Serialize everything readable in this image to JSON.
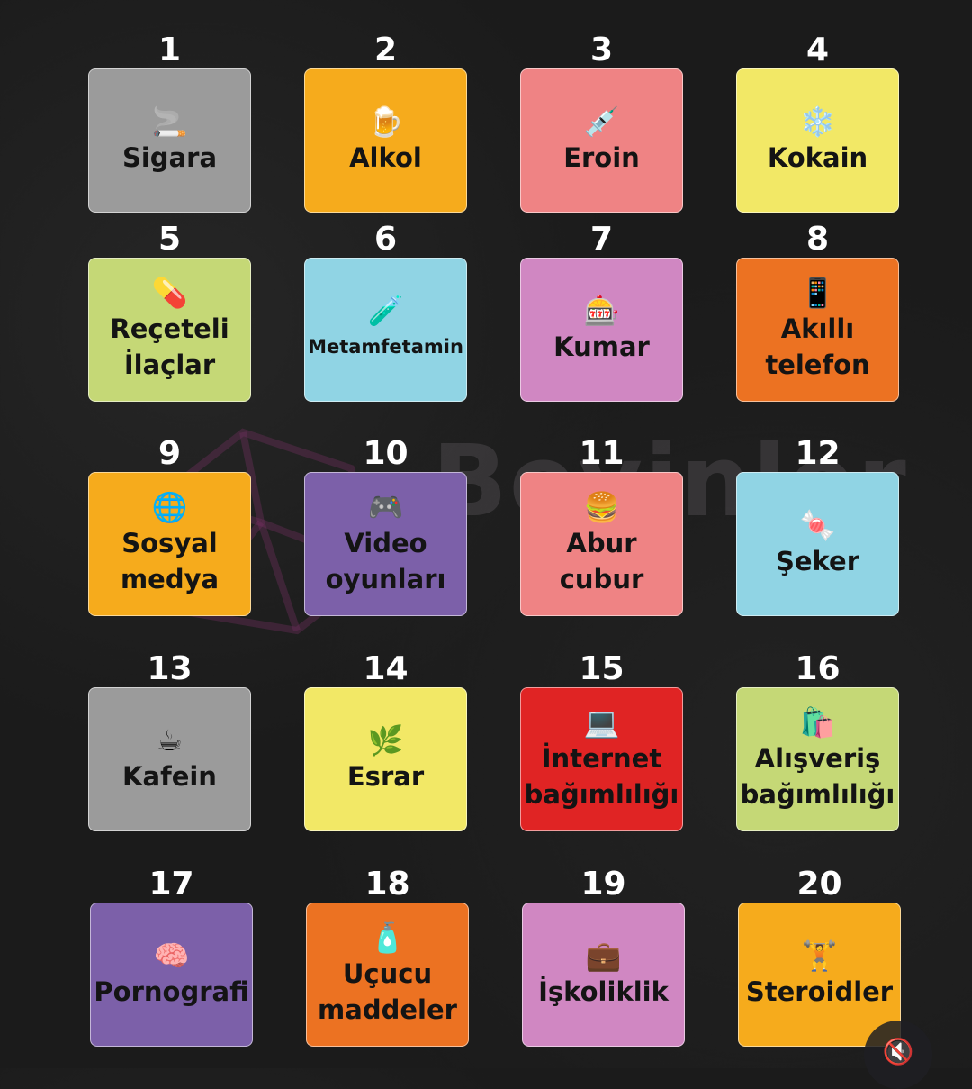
{
  "watermark": {
    "text": "Beyinler A"
  },
  "colors": {
    "gray": "#9b9b9b",
    "orange": "#f6ab1c",
    "pink": "#ef8384",
    "yellow": "#f2e866",
    "green": "#c5d876",
    "lightblue": "#90d4e4",
    "mauve": "#d087c2",
    "deeporange": "#ec7222",
    "purple": "#7c60a9",
    "red": "#e02424"
  },
  "tiles": [
    {
      "number": "1",
      "label": "Sigara",
      "icon": "🚬",
      "icon_name": "cigarette-icon",
      "color": "#9b9b9b"
    },
    {
      "number": "2",
      "label": "Alkol",
      "icon": "🍺",
      "icon_name": "beer-icon",
      "color": "#f6ab1c"
    },
    {
      "number": "3",
      "label": "Eroin",
      "icon": "💉",
      "icon_name": "syringe-icon",
      "color": "#ef8384"
    },
    {
      "number": "4",
      "label": "Kokain",
      "icon": "❄️",
      "icon_name": "snowflake-icon",
      "color": "#f2e866"
    },
    {
      "number": "5",
      "label": "Reçeteli\nİlaçlar",
      "icon": "💊",
      "icon_name": "pill-icon",
      "color": "#c5d876"
    },
    {
      "number": "6",
      "label": "Metamfetamin",
      "icon": "🧪",
      "icon_name": "test-tube-icon",
      "color": "#90d4e4"
    },
    {
      "number": "7",
      "label": "Kumar",
      "icon": "🎰",
      "icon_name": "slot-machine-icon",
      "color": "#d087c2"
    },
    {
      "number": "8",
      "label": "Akıllı\ntelefon",
      "icon": "📱",
      "icon_name": "smartphone-icon",
      "color": "#ec7222"
    },
    {
      "number": "9",
      "label": "Sosyal\nmedya",
      "icon": "🌐",
      "icon_name": "globe-icon",
      "color": "#f6ab1c"
    },
    {
      "number": "10",
      "label": "Video\noyunları",
      "icon": "🎮",
      "icon_name": "gamepad-icon",
      "color": "#7c60a9"
    },
    {
      "number": "11",
      "label": "Abur\ncubur",
      "icon": "🍔",
      "icon_name": "burger-icon",
      "color": "#ef8384"
    },
    {
      "number": "12",
      "label": "Şeker",
      "icon": "🍬",
      "icon_name": "candy-icon",
      "color": "#90d4e4"
    },
    {
      "number": "13",
      "label": "Kafein",
      "icon": "☕",
      "icon_name": "coffee-icon",
      "color": "#9b9b9b"
    },
    {
      "number": "14",
      "label": "Esrar",
      "icon": "🌿",
      "icon_name": "herb-icon",
      "color": "#f2e866"
    },
    {
      "number": "15",
      "label": "İnternet\nbağımlılığı",
      "icon": "💻",
      "icon_name": "laptop-icon",
      "color": "#e02424"
    },
    {
      "number": "16",
      "label": "Alışveriş\nbağımlılığı",
      "icon": "🛍️",
      "icon_name": "shopping-bags-icon",
      "color": "#c5d876"
    },
    {
      "number": "17",
      "label": "Pornografi",
      "icon": "🧠",
      "icon_name": "brain-icon",
      "color": "#7c60a9"
    },
    {
      "number": "18",
      "label": "Uçucu\nmaddeler",
      "icon": "🧴",
      "icon_name": "bottle-icon",
      "color": "#ec7222"
    },
    {
      "number": "19",
      "label": "İşkoliklik",
      "icon": "💼",
      "icon_name": "briefcase-icon",
      "color": "#d087c2"
    },
    {
      "number": "20",
      "label": "Steroidler",
      "icon": "🏋️",
      "icon_name": "weightlifter-icon",
      "color": "#f6ab1c"
    }
  ],
  "mute_button": {
    "icon": "🔇",
    "icon_name": "muted-speaker-icon"
  }
}
